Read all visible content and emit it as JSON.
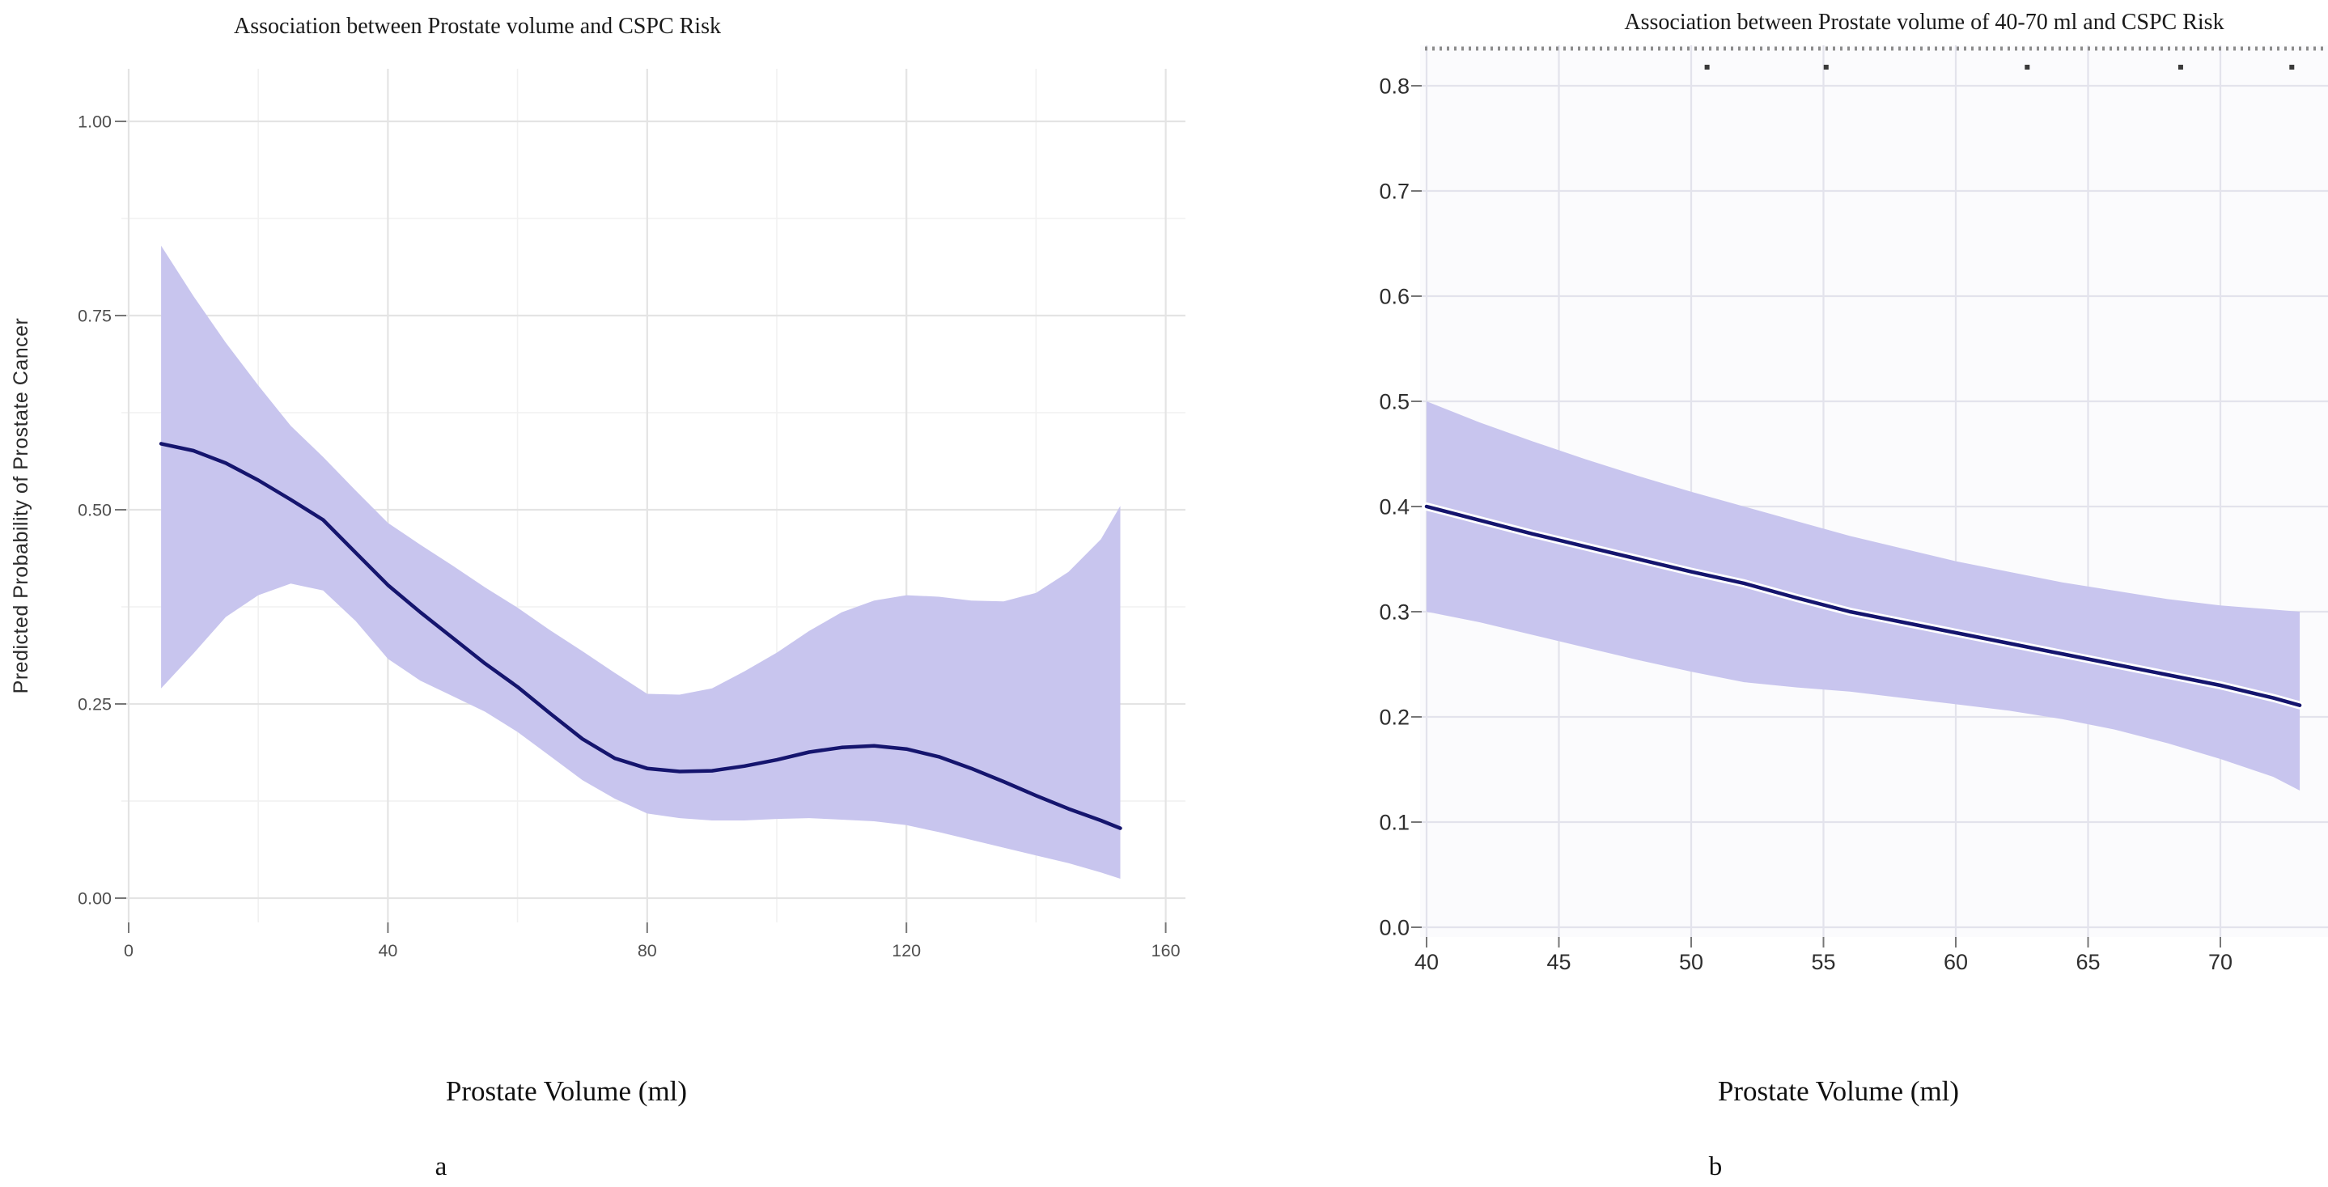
{
  "figure": {
    "description": "Two-panel figure of restricted cubic spline association plots",
    "panel_a_label": "a",
    "panel_b_label": "b"
  },
  "colors": {
    "ribbon_fill": "#c8c5ee",
    "line_navy": "#15156e",
    "line_halo": "#ffffff",
    "grid_major_a": "#e4e4e4",
    "grid_minor_a": "#f1f1f1",
    "grid_major_b": "#e3e3ec",
    "panel_bg_b": "#fbfbfd",
    "tick_mark": "#777777",
    "tick_text_a": "#4f4f4f",
    "tick_text_b": "#2e2e2e",
    "rug_dash": "#8c8c8c",
    "rug_dot": "#3a3a3a"
  },
  "chart_data": [
    {
      "id": "a",
      "type": "line",
      "title": "Association between Prostate volume and CSPC Risk",
      "xlabel": "Prostate Volume (ml)",
      "ylabel": "Predicted Probability of Prostate Cancer",
      "panel_label": "a",
      "legend_position": "none",
      "grid": "major+minor",
      "xlim": [
        0,
        163
      ],
      "ylim": [
        -0.03,
        1.07
      ],
      "x_ticks": [
        0,
        40,
        80,
        120,
        160
      ],
      "x_tick_labels": [
        "0",
        "40",
        "80",
        "120",
        "160"
      ],
      "x_minor_ticks": [
        20,
        60,
        100,
        140
      ],
      "y_ticks": [
        0,
        0.25,
        0.5,
        0.75,
        1.0
      ],
      "y_tick_labels": [
        "0.00",
        "0.25",
        "0.50",
        "0.75",
        "1.00"
      ],
      "y_minor_ticks": [
        0.125,
        0.375,
        0.625,
        0.875
      ],
      "x": [
        5,
        10,
        15,
        20,
        25,
        30,
        35,
        40,
        45,
        50,
        55,
        60,
        65,
        70,
        75,
        80,
        85,
        90,
        95,
        100,
        105,
        110,
        115,
        120,
        125,
        130,
        135,
        140,
        145,
        150,
        153
      ],
      "series": [
        {
          "name": "predicted_probability",
          "values": [
            0.585,
            0.576,
            0.56,
            0.538,
            0.513,
            0.487,
            0.445,
            0.403,
            0.368,
            0.335,
            0.302,
            0.272,
            0.238,
            0.205,
            0.18,
            0.167,
            0.163,
            0.164,
            0.17,
            0.178,
            0.188,
            0.194,
            0.196,
            0.192,
            0.182,
            0.167,
            0.15,
            0.132,
            0.115,
            0.1,
            0.09
          ]
        },
        {
          "name": "ci_upper",
          "values": [
            0.84,
            0.775,
            0.715,
            0.66,
            0.608,
            0.568,
            0.525,
            0.483,
            0.455,
            0.428,
            0.4,
            0.374,
            0.345,
            0.318,
            0.29,
            0.263,
            0.262,
            0.27,
            0.292,
            0.316,
            0.344,
            0.368,
            0.383,
            0.39,
            0.388,
            0.383,
            0.382,
            0.393,
            0.42,
            0.462,
            0.505
          ]
        },
        {
          "name": "ci_lower",
          "values": [
            0.27,
            0.315,
            0.362,
            0.39,
            0.405,
            0.396,
            0.357,
            0.308,
            0.28,
            0.26,
            0.24,
            0.214,
            0.183,
            0.152,
            0.128,
            0.109,
            0.103,
            0.1,
            0.1,
            0.102,
            0.103,
            0.101,
            0.099,
            0.094,
            0.085,
            0.075,
            0.065,
            0.055,
            0.045,
            0.033,
            0.025
          ]
        }
      ]
    },
    {
      "id": "b",
      "type": "line",
      "title": "Association between Prostate volume of 40-70 ml and CSPC Risk",
      "xlabel": "Prostate Volume (ml)",
      "ylabel": "",
      "panel_label": "b",
      "legend_position": "none",
      "grid": "major",
      "xlim": [
        40,
        74
      ],
      "ylim": [
        0,
        0.83
      ],
      "x_ticks": [
        40,
        45,
        50,
        55,
        60,
        65,
        70
      ],
      "x_tick_labels": [
        "40",
        "45",
        "50",
        "55",
        "60",
        "65",
        "70"
      ],
      "x_minor_ticks": [],
      "y_ticks": [
        0,
        0.1,
        0.2,
        0.3,
        0.4,
        0.5,
        0.6,
        0.7,
        0.8
      ],
      "y_tick_labels": [
        "0.0",
        "0.1",
        "0.2",
        "0.3",
        "0.4",
        "0.5",
        "0.6",
        "0.7",
        "0.8"
      ],
      "y_minor_ticks": [],
      "x": [
        40,
        42,
        44,
        46,
        48,
        50,
        52,
        54,
        56,
        58,
        60,
        62,
        64,
        66,
        68,
        70,
        72,
        73
      ],
      "series": [
        {
          "name": "predicted_probability",
          "values": [
            0.4,
            0.387,
            0.374,
            0.362,
            0.35,
            0.338,
            0.327,
            0.313,
            0.3,
            0.29,
            0.28,
            0.27,
            0.26,
            0.25,
            0.24,
            0.23,
            0.218,
            0.211
          ]
        },
        {
          "name": "ci_upper",
          "values": [
            0.5,
            0.48,
            0.462,
            0.445,
            0.429,
            0.414,
            0.4,
            0.386,
            0.372,
            0.36,
            0.348,
            0.338,
            0.328,
            0.32,
            0.312,
            0.306,
            0.302,
            0.3
          ]
        },
        {
          "name": "ci_lower",
          "values": [
            0.3,
            0.29,
            0.278,
            0.266,
            0.254,
            0.243,
            0.233,
            0.228,
            0.224,
            0.218,
            0.212,
            0.206,
            0.198,
            0.188,
            0.175,
            0.16,
            0.143,
            0.13
          ]
        }
      ],
      "rug": {
        "top_strip": true,
        "dot_x_values": [
          50.6,
          55.1,
          62.7,
          68.5,
          72.7
        ]
      }
    }
  ]
}
